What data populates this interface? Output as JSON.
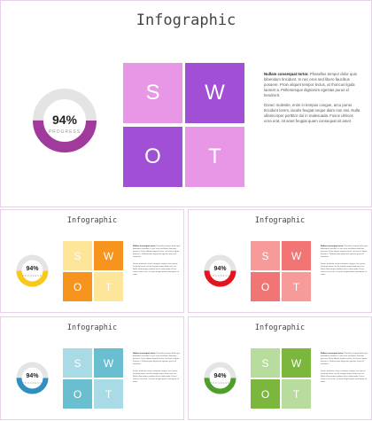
{
  "slides": [
    {
      "title": "Infographic",
      "percent_label": "94%",
      "progress_label": "PROGRESS",
      "progress_value": 0.94,
      "letters": [
        "S",
        "W",
        "O",
        "T"
      ],
      "colors": {
        "tile_light": "#e797e6",
        "tile_dark": "#a150d6",
        "ring": "#a13a9c",
        "track": "#e4e4e4"
      },
      "p1_bold": "Nullam consequat tortor.",
      "p1_text": "Phasellus tempor dolor quis bibendum tincidunt. In nec eros sed libero faucibus posuere. Proin aliquet tempor lectus, at rhoncus ligula laoreet a. Pellentesque dignissim egestas purus id hendrerit.",
      "p2_text": "Donec molestie, enim in tempus congue, arcu purus tincidunt lorem, iaculis feugiat neque diam non nisi. Nulla ullamcorper porttitor dui in malesuada. Fusce ultrices urna erat, sit amet feugiat quam consequat sit amet."
    },
    {
      "title": "Infographic",
      "percent_label": "94%",
      "progress_label": "PROGRESS",
      "progress_value": 0.94,
      "letters": [
        "S",
        "W",
        "O",
        "T"
      ],
      "colors": {
        "tile_light": "#fde59a",
        "tile_dark": "#f7941d",
        "ring": "#f6c91a",
        "track": "#e4e4e4"
      },
      "p1_bold": "Nullam consequat tortor.",
      "p1_text": "Phasellus tempor dolor quis bibendum tincidunt. In nec eros sed libero faucibus posuere. Proin aliquet tempor lectus, at rhoncus ligula laoreet a. Pellentesque dignissim egestas purus id hendrerit.",
      "p2_text": "Donec molestie, enim in tempus congue, arcu purus tincidunt lorem, iaculis feugiat neque diam non nisi. Nulla ullamcorper porttitor dui in malesuada. Fusce ultrices urna erat, sit amet feugiat quam consequat sit amet."
    },
    {
      "title": "Infographic",
      "percent_label": "94%",
      "progress_label": "PROGRESS",
      "progress_value": 0.94,
      "letters": [
        "S",
        "W",
        "O",
        "T"
      ],
      "colors": {
        "tile_light": "#f79a9a",
        "tile_dark": "#f17575",
        "ring": "#e3141c",
        "track": "#e4e4e4"
      },
      "p1_bold": "Nullam consequat tortor.",
      "p1_text": "Phasellus tempor dolor quis bibendum tincidunt. In nec eros sed libero faucibus posuere. Proin aliquet tempor lectus, at rhoncus ligula laoreet a. Pellentesque dignissim egestas purus id hendrerit.",
      "p2_text": "Donec molestie, enim in tempus congue, arcu purus tincidunt lorem, iaculis feugiat neque diam non nisi. Nulla ullamcorper porttitor dui in malesuada. Fusce ultrices urna erat, sit amet feugiat quam consequat sit amet."
    },
    {
      "title": "Infographic",
      "percent_label": "94%",
      "progress_label": "PROGRESS",
      "progress_value": 0.94,
      "letters": [
        "S",
        "W",
        "O",
        "T"
      ],
      "colors": {
        "tile_light": "#a9dbe6",
        "tile_dark": "#69bfcf",
        "ring": "#2f8fc1",
        "track": "#e4e4e4"
      },
      "p1_bold": "Nullam consequat tortor.",
      "p1_text": "Phasellus tempor dolor quis bibendum tincidunt. In nec eros sed libero faucibus posuere. Proin aliquet tempor lectus, at rhoncus ligula laoreet a. Pellentesque dignissim egestas purus id hendrerit.",
      "p2_text": "Donec molestie, enim in tempus congue, arcu purus tincidunt lorem, iaculis feugiat neque diam non nisi. Nulla ullamcorper porttitor dui in malesuada. Fusce ultrices urna erat, sit amet feugiat quam consequat sit amet."
    },
    {
      "title": "Infographic",
      "percent_label": "94%",
      "progress_label": "PROGRESS",
      "progress_value": 0.94,
      "letters": [
        "S",
        "W",
        "O",
        "T"
      ],
      "colors": {
        "tile_light": "#b8dc9d",
        "tile_dark": "#7cb73d",
        "ring": "#4e9e2c",
        "track": "#e4e4e4"
      },
      "p1_bold": "Nullam consequat tortor.",
      "p1_text": "Phasellus tempor dolor quis bibendum tincidunt. In nec eros sed libero faucibus posuere. Proin aliquet tempor lectus, at rhoncus ligula laoreet a. Pellentesque dignissim egestas purus id hendrerit.",
      "p2_text": "Donec molestie, enim in tempus congue, arcu purus tincidunt lorem, iaculis feugiat neque diam non nisi. Nulla ullamcorper porttitor dui in malesuada. Fusce ultrices urna erat, sit amet feugiat quam consequat sit amet."
    }
  ]
}
